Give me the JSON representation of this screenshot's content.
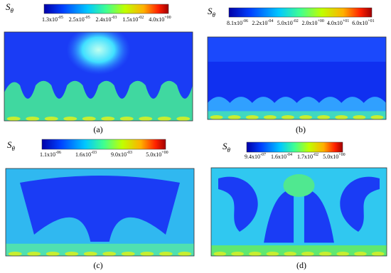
{
  "panels": [
    {
      "symbol": "S",
      "subscript": "θ",
      "caption": "(a)",
      "colorbar_ticks": [
        {
          "mantissa": "1.3x10",
          "exponent": "-05"
        },
        {
          "mantissa": "2.5x10",
          "exponent": "-05"
        },
        {
          "mantissa": "2.4x10",
          "exponent": "-03"
        },
        {
          "mantissa": "1.5x10",
          "exponent": "-02"
        },
        {
          "mantissa": "4.0x10",
          "exponent": "+00"
        }
      ]
    },
    {
      "symbol": "S",
      "subscript": "θ",
      "caption": "(b)",
      "colorbar_ticks": [
        {
          "mantissa": "8.1x10",
          "exponent": "-06"
        },
        {
          "mantissa": "2.2x10",
          "exponent": "-04"
        },
        {
          "mantissa": "5.0x10",
          "exponent": "-02"
        },
        {
          "mantissa": "2.0x10",
          "exponent": "+00"
        },
        {
          "mantissa": "4.0x10",
          "exponent": "+01"
        },
        {
          "mantissa": "6.0x10",
          "exponent": "+01"
        }
      ]
    },
    {
      "symbol": "S",
      "subscript": "θ",
      "caption": "(c)",
      "colorbar_ticks": [
        {
          "mantissa": "1.1x10",
          "exponent": "-06"
        },
        {
          "mantissa": "1.6x10",
          "exponent": "-03"
        },
        {
          "mantissa": "9.0x10",
          "exponent": "-03"
        },
        {
          "mantissa": "5.0x10",
          "exponent": "+00"
        }
      ]
    },
    {
      "symbol": "S",
      "subscript": "θ",
      "caption": "(d)",
      "colorbar_ticks": [
        {
          "mantissa": "9.4x10",
          "exponent": "-07"
        },
        {
          "mantissa": "1.6x10",
          "exponent": "-04"
        },
        {
          "mantissa": "1.7x10",
          "exponent": "-02"
        },
        {
          "mantissa": "5.0x10",
          "exponent": "+00"
        }
      ]
    }
  ]
}
